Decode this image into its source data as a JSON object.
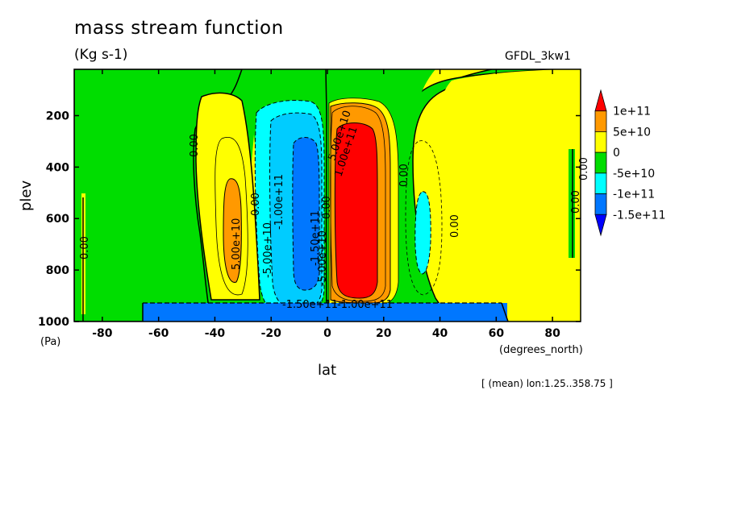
{
  "chart_data": {
    "type": "contour",
    "title": "mass stream function",
    "units": "(Kg s-1)",
    "model_label": "GFDL_3kw1",
    "xlabel": "lat",
    "xunit": "(degrees_north)",
    "ylabel": "plev",
    "yunit": "(Pa)",
    "xlim": [
      -90,
      90
    ],
    "ylim": [
      1000,
      20
    ],
    "y_inverted": true,
    "x_ticks": [
      -80,
      -60,
      -40,
      -20,
      0,
      20,
      40,
      60,
      80
    ],
    "y_ticks": [
      200,
      400,
      600,
      800,
      1000
    ],
    "footnote": "[ (mean) lon:1.25..358.75 ]",
    "legend": {
      "levels": [
        "1e+11",
        "5e+10",
        "0",
        "-5e+10",
        "-1e+11",
        "-1.5e+11"
      ],
      "colors": [
        "#ff0000",
        "#ff9900",
        "#ffff00",
        "#00dd00",
        "#00ffff",
        "#0077ff",
        "#0000ff"
      ]
    },
    "contour_labels": [
      "5.00e+10",
      "-5.00e+10",
      "-1.00e+11",
      "-1.50e+11",
      "-5.00e+10",
      "1.00e+11",
      "5.00e+10",
      "-1.50e+11",
      "1.00e+11",
      "0.00",
      "0.00",
      "0.00",
      "0.00",
      "0.00",
      "0.00",
      "0.00",
      "0.00"
    ],
    "features": [
      {
        "name": "negative cell (SH Hadley)",
        "center_lat": -10,
        "min": -150000000000.0
      },
      {
        "name": "positive cell (NH Hadley)",
        "center_lat": 10,
        "max": 100000000000.0
      },
      {
        "name": "positive cell SH midlat",
        "center_lat": -35,
        "max": 50000000000.0
      },
      {
        "name": "negative cell NH midlat",
        "center_lat": 33,
        "min": -100000000000.0
      }
    ]
  },
  "colors": {
    "red": "#ff0000",
    "orange": "#ff9900",
    "yellow": "#ffff00",
    "green": "#00dd00",
    "cyan": "#00ffff",
    "blue": "#0077ff"
  }
}
